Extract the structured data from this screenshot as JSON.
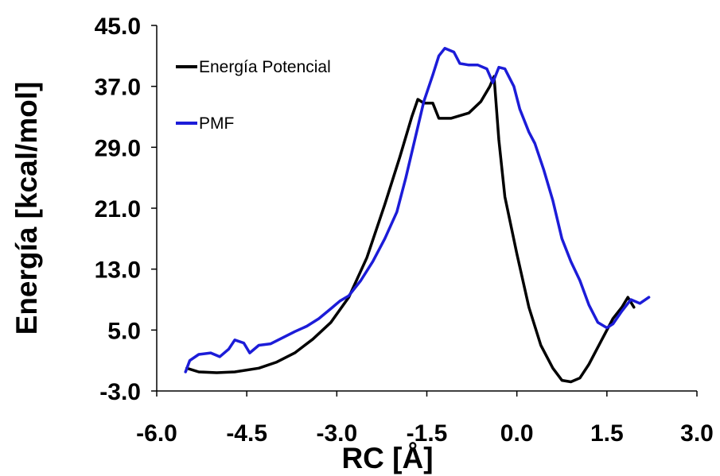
{
  "chart_data": {
    "type": "line",
    "title": "",
    "xlabel": "RC [Å]",
    "ylabel": "Energía [kcal/mol]",
    "xlim": [
      -6.0,
      3.0
    ],
    "ylim": [
      -3.0,
      45.0
    ],
    "x_ticks": [
      -6.0,
      -4.5,
      -3.0,
      -1.5,
      0.0,
      1.5,
      3.0
    ],
    "x_tick_labels": [
      "-6.0",
      "-4.5",
      "-3.0",
      "-1.5",
      "0.0",
      "1.5",
      "3.0"
    ],
    "y_ticks": [
      -3.0,
      5.0,
      13.0,
      21.0,
      29.0,
      37.0,
      45.0
    ],
    "y_tick_labels": [
      "-3.0",
      "5.0",
      "13.0",
      "21.0",
      "29.0",
      "37.0",
      "45.0"
    ],
    "grid": false,
    "legend_position": "top-left",
    "series": [
      {
        "name": "Energía Potencial",
        "color": "#000000",
        "points": [
          [
            -5.5,
            0.0
          ],
          [
            -5.3,
            -0.5
          ],
          [
            -5.0,
            -0.6
          ],
          [
            -4.7,
            -0.5
          ],
          [
            -4.3,
            0.0
          ],
          [
            -4.0,
            0.8
          ],
          [
            -3.7,
            2.0
          ],
          [
            -3.4,
            3.8
          ],
          [
            -3.1,
            6.0
          ],
          [
            -2.8,
            9.3
          ],
          [
            -2.5,
            14.5
          ],
          [
            -2.2,
            21.5
          ],
          [
            -1.95,
            27.7
          ],
          [
            -1.75,
            33.0
          ],
          [
            -1.65,
            35.3
          ],
          [
            -1.55,
            34.8
          ],
          [
            -1.4,
            34.8
          ],
          [
            -1.3,
            32.8
          ],
          [
            -1.1,
            32.8
          ],
          [
            -0.8,
            33.5
          ],
          [
            -0.6,
            35.0
          ],
          [
            -0.45,
            37.0
          ],
          [
            -0.38,
            38.3
          ],
          [
            -0.3,
            30.0
          ],
          [
            -0.2,
            22.5
          ],
          [
            0.0,
            15.0
          ],
          [
            0.2,
            8.0
          ],
          [
            0.4,
            3.0
          ],
          [
            0.6,
            0.0
          ],
          [
            0.75,
            -1.6
          ],
          [
            0.9,
            -1.8
          ],
          [
            1.05,
            -1.3
          ],
          [
            1.2,
            0.5
          ],
          [
            1.4,
            3.5
          ],
          [
            1.6,
            6.5
          ],
          [
            1.75,
            8.0
          ],
          [
            1.85,
            9.3
          ],
          [
            1.95,
            8.0
          ]
        ]
      },
      {
        "name": "PMF",
        "color": "#1c1cd8",
        "points": [
          [
            -5.52,
            -0.5
          ],
          [
            -5.45,
            1.0
          ],
          [
            -5.3,
            1.8
          ],
          [
            -5.1,
            2.0
          ],
          [
            -4.95,
            1.5
          ],
          [
            -4.8,
            2.5
          ],
          [
            -4.7,
            3.7
          ],
          [
            -4.55,
            3.3
          ],
          [
            -4.45,
            2.0
          ],
          [
            -4.3,
            3.0
          ],
          [
            -4.1,
            3.2
          ],
          [
            -3.9,
            4.0
          ],
          [
            -3.7,
            4.8
          ],
          [
            -3.5,
            5.5
          ],
          [
            -3.3,
            6.5
          ],
          [
            -3.1,
            7.8
          ],
          [
            -2.95,
            8.8
          ],
          [
            -2.8,
            9.5
          ],
          [
            -2.6,
            11.5
          ],
          [
            -2.4,
            14.0
          ],
          [
            -2.2,
            17.0
          ],
          [
            -2.0,
            20.5
          ],
          [
            -1.85,
            25.0
          ],
          [
            -1.7,
            30.0
          ],
          [
            -1.55,
            35.0
          ],
          [
            -1.4,
            38.5
          ],
          [
            -1.3,
            41.0
          ],
          [
            -1.2,
            42.0
          ],
          [
            -1.05,
            41.5
          ],
          [
            -0.95,
            40.0
          ],
          [
            -0.8,
            39.8
          ],
          [
            -0.65,
            39.8
          ],
          [
            -0.5,
            39.3
          ],
          [
            -0.4,
            37.5
          ],
          [
            -0.3,
            39.5
          ],
          [
            -0.2,
            39.3
          ],
          [
            -0.05,
            37.0
          ],
          [
            0.05,
            34.0
          ],
          [
            0.2,
            31.0
          ],
          [
            0.3,
            29.5
          ],
          [
            0.45,
            26.0
          ],
          [
            0.6,
            22.0
          ],
          [
            0.75,
            17.0
          ],
          [
            0.9,
            14.0
          ],
          [
            1.05,
            11.5
          ],
          [
            1.2,
            8.3
          ],
          [
            1.35,
            6.0
          ],
          [
            1.5,
            5.3
          ],
          [
            1.6,
            5.8
          ],
          [
            1.75,
            7.5
          ],
          [
            1.9,
            9.0
          ],
          [
            2.05,
            8.5
          ],
          [
            2.2,
            9.3
          ]
        ]
      }
    ]
  }
}
